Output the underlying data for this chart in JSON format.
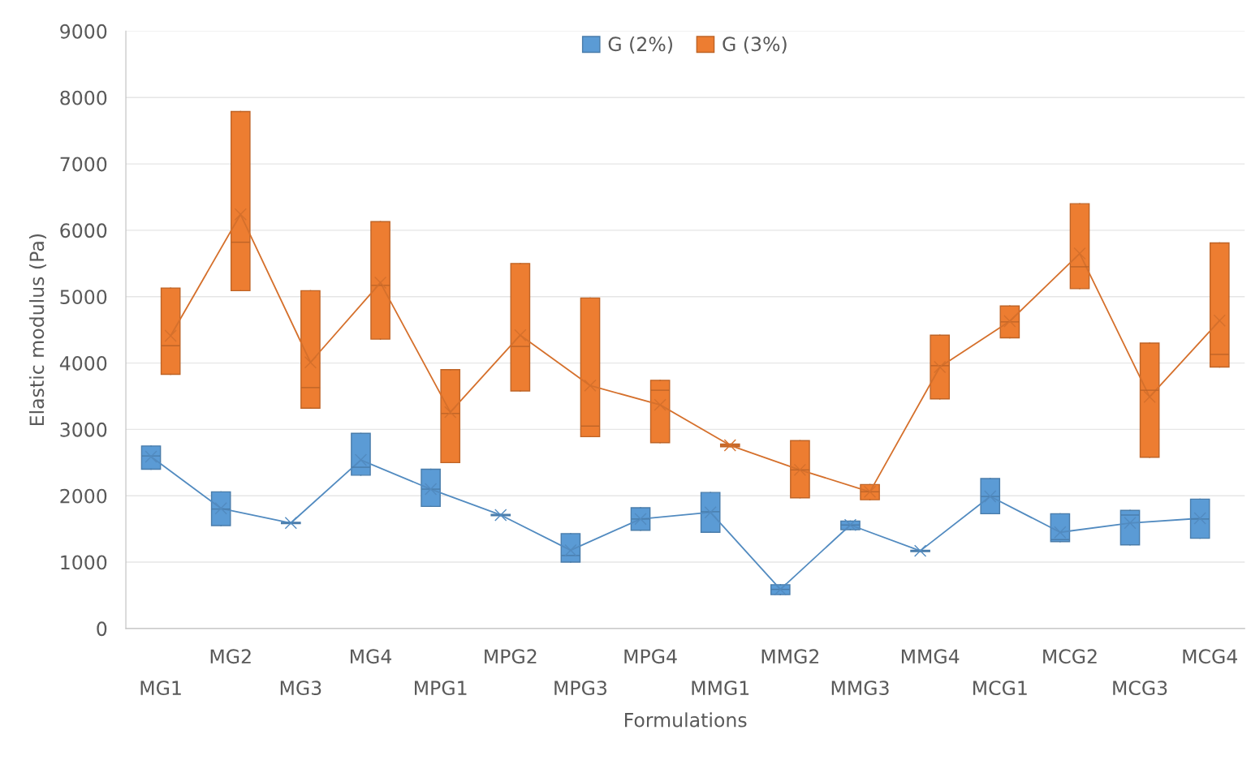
{
  "chart_data": {
    "type": "box",
    "xlabel": "Formulations",
    "ylabel": "Elastic modulus (Pa)",
    "categories": [
      "MG1",
      "MG2",
      "MG3",
      "MG4",
      "MPG1",
      "MPG2",
      "MPG3",
      "MPG4",
      "MMG1",
      "MMG2",
      "MMG3",
      "MMG4",
      "MCG1",
      "MCG2",
      "MCG3",
      "MCG4"
    ],
    "ylim": [
      0,
      9000
    ],
    "yticks": [
      0,
      1000,
      2000,
      3000,
      4000,
      5000,
      6000,
      7000,
      8000,
      9000
    ],
    "grid": "y",
    "legend": "top",
    "series": [
      {
        "name": "G (2%)",
        "color": "#5b9bd5",
        "marker": "cross",
        "boxes": [
          {
            "low": 2400,
            "q1": 2400,
            "median": 2600,
            "q3": 2750,
            "high": 2750,
            "mean": 2590
          },
          {
            "low": 1550,
            "q1": 1550,
            "median": 1800,
            "q3": 2060,
            "high": 2060,
            "mean": 1810
          },
          {
            "low": 1580,
            "q1": 1580,
            "median": 1590,
            "q3": 1600,
            "high": 1600,
            "mean": 1590
          },
          {
            "low": 2310,
            "q1": 2310,
            "median": 2430,
            "q3": 2940,
            "high": 2940,
            "mean": 2540
          },
          {
            "low": 1840,
            "q1": 1840,
            "median": 2100,
            "q3": 2400,
            "high": 2400,
            "mean": 2100
          },
          {
            "low": 1700,
            "q1": 1700,
            "median": 1710,
            "q3": 1720,
            "high": 1720,
            "mean": 1710
          },
          {
            "low": 1000,
            "q1": 1000,
            "median": 1100,
            "q3": 1430,
            "high": 1430,
            "mean": 1180
          },
          {
            "low": 1480,
            "q1": 1480,
            "median": 1650,
            "q3": 1820,
            "high": 1820,
            "mean": 1650
          },
          {
            "low": 1450,
            "q1": 1450,
            "median": 1760,
            "q3": 2050,
            "high": 2050,
            "mean": 1750
          },
          {
            "low": 510,
            "q1": 510,
            "median": 590,
            "q3": 660,
            "high": 660,
            "mean": 590
          },
          {
            "low": 1490,
            "q1": 1490,
            "median": 1560,
            "q3": 1620,
            "high": 1620,
            "mean": 1560
          },
          {
            "low": 1160,
            "q1": 1160,
            "median": 1170,
            "q3": 1180,
            "high": 1180,
            "mean": 1170
          },
          {
            "low": 1730,
            "q1": 1730,
            "median": 1990,
            "q3": 2260,
            "high": 2260,
            "mean": 1990
          },
          {
            "low": 1310,
            "q1": 1310,
            "median": 1340,
            "q3": 1730,
            "high": 1730,
            "mean": 1450
          },
          {
            "low": 1260,
            "q1": 1260,
            "median": 1710,
            "q3": 1780,
            "high": 1780,
            "mean": 1590
          },
          {
            "low": 1360,
            "q1": 1360,
            "median": 1650,
            "q3": 1950,
            "high": 1950,
            "mean": 1660
          }
        ]
      },
      {
        "name": "G (3%)",
        "color": "#ed7d31",
        "marker": "cross",
        "boxes": [
          {
            "low": 3830,
            "q1": 3830,
            "median": 4260,
            "q3": 5130,
            "high": 5130,
            "mean": 4410
          },
          {
            "low": 5090,
            "q1": 5090,
            "median": 5820,
            "q3": 7790,
            "high": 7790,
            "mean": 6240
          },
          {
            "low": 3320,
            "q1": 3320,
            "median": 3630,
            "q3": 5090,
            "high": 5090,
            "mean": 4010
          },
          {
            "low": 4360,
            "q1": 4360,
            "median": 5170,
            "q3": 6130,
            "high": 6130,
            "mean": 5210
          },
          {
            "low": 2500,
            "q1": 2500,
            "median": 3240,
            "q3": 3900,
            "high": 3900,
            "mean": 3260
          },
          {
            "low": 3580,
            "q1": 3580,
            "median": 4250,
            "q3": 5500,
            "high": 5500,
            "mean": 4420
          },
          {
            "low": 2890,
            "q1": 2890,
            "median": 3050,
            "q3": 4980,
            "high": 4980,
            "mean": 3660
          },
          {
            "low": 2800,
            "q1": 2800,
            "median": 3590,
            "q3": 3740,
            "high": 3740,
            "mean": 3370
          },
          {
            "low": 2740,
            "q1": 2740,
            "median": 2760,
            "q3": 2780,
            "high": 2780,
            "mean": 2760
          },
          {
            "low": 1970,
            "q1": 1970,
            "median": 2390,
            "q3": 2830,
            "high": 2830,
            "mean": 2390
          },
          {
            "low": 1940,
            "q1": 1940,
            "median": 2060,
            "q3": 2170,
            "high": 2170,
            "mean": 2060
          },
          {
            "low": 3460,
            "q1": 3460,
            "median": 3960,
            "q3": 4420,
            "high": 4420,
            "mean": 3940
          },
          {
            "low": 4380,
            "q1": 4380,
            "median": 4620,
            "q3": 4860,
            "high": 4860,
            "mean": 4630
          },
          {
            "low": 5120,
            "q1": 5120,
            "median": 5450,
            "q3": 6400,
            "high": 6400,
            "mean": 5650
          },
          {
            "low": 2580,
            "q1": 2580,
            "median": 3590,
            "q3": 4300,
            "high": 4300,
            "mean": 3490
          },
          {
            "low": 3940,
            "q1": 3940,
            "median": 4130,
            "q3": 5810,
            "high": 5810,
            "mean": 4640
          }
        ]
      },
      {
        "type": "line",
        "color": "#528bc0",
        "values": [
          2590,
          1810,
          1590,
          2540,
          2100,
          1710,
          1180,
          1650,
          1750,
          590,
          1560,
          1170,
          1990,
          1450,
          1590,
          1660
        ]
      },
      {
        "type": "line",
        "color": "#d5702c",
        "values": [
          4410,
          6240,
          4010,
          5210,
          3260,
          4420,
          3660,
          3370,
          2760,
          2390,
          2060,
          3940,
          4630,
          5650,
          3490,
          4640
        ]
      }
    ]
  }
}
